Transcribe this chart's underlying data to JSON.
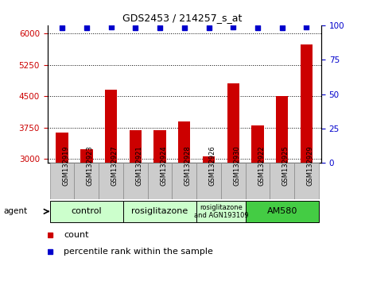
{
  "title": "GDS2453 / 214257_s_at",
  "samples": [
    "GSM132919",
    "GSM132923",
    "GSM132927",
    "GSM132921",
    "GSM132924",
    "GSM132928",
    "GSM132926",
    "GSM132930",
    "GSM132922",
    "GSM132925",
    "GSM132929"
  ],
  "counts": [
    3620,
    3230,
    4650,
    3680,
    3680,
    3900,
    3050,
    4800,
    3800,
    4500,
    5750
  ],
  "percentile_ranks": [
    98,
    98,
    99,
    98,
    98,
    98,
    98,
    99,
    98,
    98,
    99
  ],
  "ylim_left": [
    2900,
    6200
  ],
  "ylim_right": [
    0,
    100
  ],
  "yticks_left": [
    3000,
    3750,
    4500,
    5250,
    6000
  ],
  "yticks_right": [
    0,
    25,
    50,
    75,
    100
  ],
  "bar_color": "#cc0000",
  "dot_color": "#0000cc",
  "groups": [
    {
      "label": "control",
      "indices": [
        0,
        1,
        2
      ],
      "color": "#ccffcc"
    },
    {
      "label": "rosiglitazone",
      "indices": [
        3,
        4,
        5
      ],
      "color": "#ccffcc"
    },
    {
      "label": "rosiglitazone\nand AGN193109",
      "indices": [
        6,
        7
      ],
      "color": "#ccffcc"
    },
    {
      "label": "AM580",
      "indices": [
        8,
        9,
        10
      ],
      "color": "#44cc44"
    }
  ],
  "legend_count_color": "#cc0000",
  "legend_dot_color": "#0000cc",
  "bar_width": 0.5,
  "plot_bg_color": "#ffffff",
  "tick_label_color_left": "#cc0000",
  "tick_label_color_right": "#0000cc",
  "cell_bg_color": "#cccccc",
  "cell_edge_color": "#888888"
}
